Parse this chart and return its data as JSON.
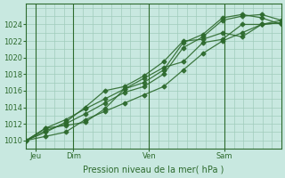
{
  "bg_color": "#c8e8e0",
  "plot_bg_color": "#c8e8e0",
  "grid_color": "#a0ccbb",
  "line_color": "#2d6a2d",
  "spine_color": "#2d6a2d",
  "xlabel": "Pression niveau de la mer( hPa )",
  "ylim": [
    1009.0,
    1026.5
  ],
  "yticks": [
    1010,
    1012,
    1014,
    1016,
    1018,
    1020,
    1022,
    1024
  ],
  "xlim": [
    0,
    13.5
  ],
  "xtick_labels": [
    "Jeu",
    "Dim",
    "Ven",
    "Sam"
  ],
  "xtick_pos": [
    0.5,
    2.5,
    6.5,
    10.5
  ],
  "vlines": [
    0.5,
    2.5,
    6.5,
    10.5
  ],
  "n_points": 14,
  "lines": [
    [
      1010.0,
      1011.5,
      1011.8,
      1012.2,
      1013.8,
      1016.2,
      1017.5,
      1018.8,
      1019.5,
      1021.8,
      1022.2,
      1024.0,
      1024.0,
      1024.2
    ],
    [
      1010.0,
      1011.2,
      1012.0,
      1013.2,
      1014.5,
      1015.8,
      1016.5,
      1018.0,
      1021.2,
      1022.5,
      1024.5,
      1025.0,
      1025.2,
      1024.5
    ],
    [
      1010.0,
      1011.5,
      1012.5,
      1013.8,
      1015.0,
      1016.2,
      1017.0,
      1018.5,
      1021.8,
      1022.8,
      1024.8,
      1025.2,
      1024.8,
      1024.0
    ],
    [
      1010.0,
      1011.0,
      1012.2,
      1014.0,
      1016.0,
      1016.5,
      1017.8,
      1019.5,
      1022.0,
      1022.2,
      1023.0,
      1022.5,
      1024.0,
      1024.5
    ],
    [
      1010.0,
      1010.5,
      1011.0,
      1012.5,
      1013.5,
      1014.5,
      1015.5,
      1016.5,
      1018.5,
      1020.5,
      1022.0,
      1023.0,
      1024.0,
      1024.2
    ]
  ],
  "marker": "D",
  "markersize": 2.5,
  "linewidth": 0.9,
  "xlabel_fontsize": 7,
  "tick_fontsize": 6
}
